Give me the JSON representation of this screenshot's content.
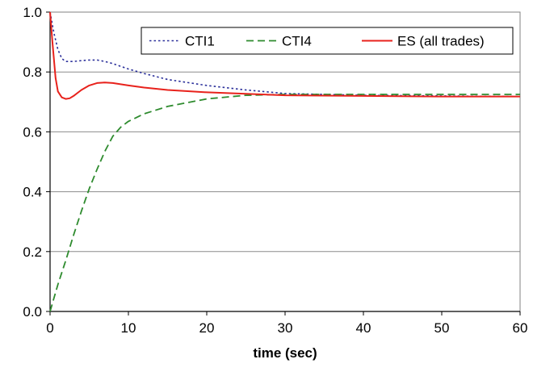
{
  "chart_data": {
    "type": "line",
    "title": "",
    "xlabel": "time (sec)",
    "ylabel": "",
    "xlim": [
      0,
      60
    ],
    "ylim": [
      0,
      1
    ],
    "xticks": [
      0,
      10,
      20,
      30,
      40,
      50,
      60
    ],
    "xtick_labels": [
      "0",
      "10",
      "20",
      "30",
      "40",
      "50",
      "60"
    ],
    "yticks": [
      0,
      0.2,
      0.4,
      0.6,
      0.8,
      1.0
    ],
    "ytick_labels": [
      "0.0",
      "0.2",
      "0.4",
      "0.6",
      "0.8",
      "1.0"
    ],
    "grid": "horizontal",
    "legend_position": "top-right",
    "series": [
      {
        "name": "CTI1",
        "color": "#2a2f9a",
        "style": "dotted",
        "x": [
          0,
          0.5,
          1,
          1.5,
          2,
          3,
          4,
          5,
          6,
          7,
          8,
          10,
          12,
          15,
          20,
          25,
          30,
          40,
          50,
          60
        ],
        "y": [
          1.0,
          0.93,
          0.875,
          0.845,
          0.835,
          0.835,
          0.838,
          0.84,
          0.84,
          0.835,
          0.828,
          0.81,
          0.795,
          0.775,
          0.755,
          0.74,
          0.728,
          0.722,
          0.72,
          0.718
        ]
      },
      {
        "name": "CTI4",
        "color": "#2e8b2e",
        "style": "dashed",
        "x": [
          0,
          1,
          2,
          3,
          4,
          5,
          6,
          7,
          8,
          9,
          10,
          12,
          15,
          20,
          25,
          30,
          40,
          50,
          60
        ],
        "y": [
          0.0,
          0.09,
          0.17,
          0.255,
          0.335,
          0.41,
          0.475,
          0.535,
          0.585,
          0.615,
          0.635,
          0.66,
          0.685,
          0.71,
          0.722,
          0.725,
          0.725,
          0.725,
          0.725
        ]
      },
      {
        "name": "ES (all trades)",
        "color": "#e8221c",
        "style": "solid",
        "x": [
          0,
          0.3,
          0.7,
          1,
          1.5,
          2,
          2.5,
          3,
          4,
          5,
          6,
          7,
          8,
          10,
          12,
          15,
          20,
          30,
          40,
          50,
          60
        ],
        "y": [
          1.0,
          0.9,
          0.78,
          0.735,
          0.715,
          0.71,
          0.712,
          0.72,
          0.74,
          0.755,
          0.763,
          0.765,
          0.763,
          0.755,
          0.748,
          0.74,
          0.732,
          0.722,
          0.72,
          0.718,
          0.718
        ]
      }
    ]
  }
}
